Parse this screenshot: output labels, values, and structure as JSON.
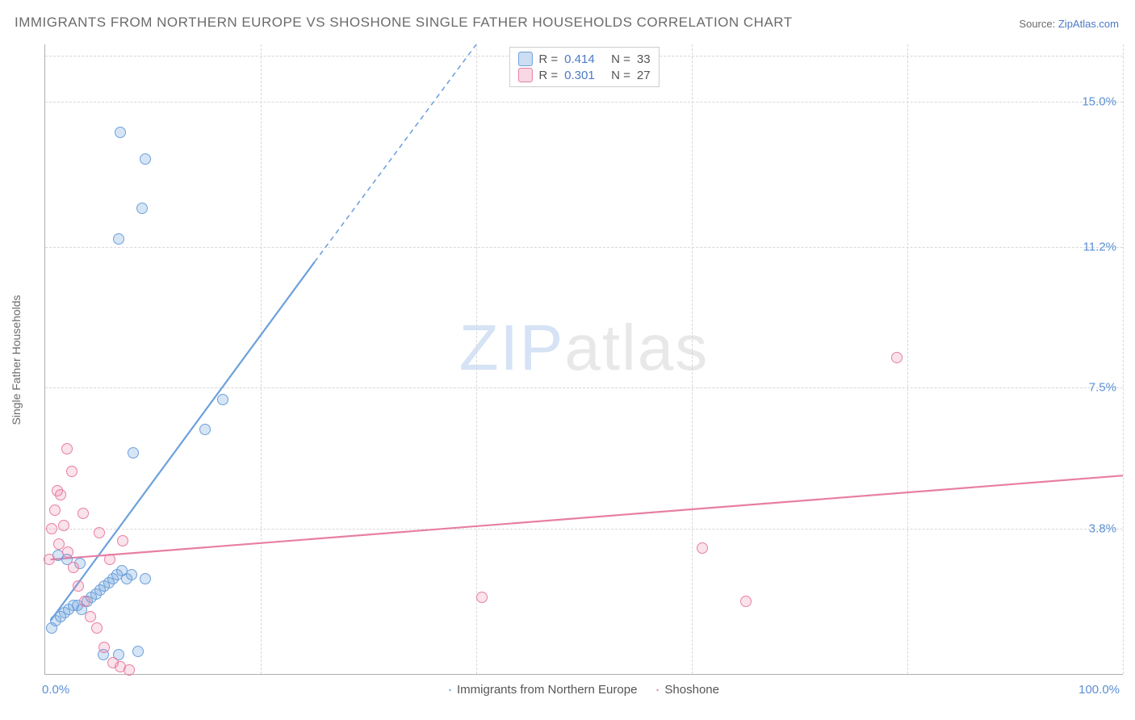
{
  "title": "IMMIGRANTS FROM NORTHERN EUROPE VS SHOSHONE SINGLE FATHER HOUSEHOLDS CORRELATION CHART",
  "source_label": "Source:",
  "source_link": "ZipAtlas.com",
  "watermark_a": "ZIP",
  "watermark_b": "atlas",
  "chart": {
    "type": "scatter",
    "y_axis_label": "Single Father Households",
    "xlim": [
      0,
      100
    ],
    "ylim": [
      0,
      16.5
    ],
    "x_tick_labels": [
      {
        "x": 0,
        "label": "0.0%"
      },
      {
        "x": 100,
        "label": "100.0%"
      }
    ],
    "y_tick_labels": [
      {
        "y": 3.8,
        "label": "3.8%"
      },
      {
        "y": 7.5,
        "label": "7.5%"
      },
      {
        "y": 11.2,
        "label": "11.2%"
      },
      {
        "y": 15.0,
        "label": "15.0%"
      }
    ],
    "grid_h": [
      3.8,
      7.5,
      11.2,
      15.0,
      16.2
    ],
    "grid_v": [
      20,
      40,
      60,
      80,
      100
    ],
    "background_color": "#ffffff",
    "grid_color": "#d8d8d8",
    "series": [
      {
        "key": "blue",
        "name": "Immigrants from Northern Europe",
        "color_fill": "rgba(108,160,220,0.28)",
        "color_stroke": "#6ca0dc",
        "r_value": "0.414",
        "n_value": "33",
        "marker_radius": 7,
        "trend": {
          "x1": 0.5,
          "y1": 1.4,
          "x2_solid": 25,
          "y2_solid": 10.8,
          "x2_dash": 40,
          "y2_dash": 16.5,
          "stroke_width": 2.2
        },
        "points": [
          {
            "x": 0.6,
            "y": 1.2
          },
          {
            "x": 1.0,
            "y": 1.4
          },
          {
            "x": 1.4,
            "y": 1.5
          },
          {
            "x": 1.8,
            "y": 1.6
          },
          {
            "x": 2.2,
            "y": 1.7
          },
          {
            "x": 2.6,
            "y": 1.8
          },
          {
            "x": 3.0,
            "y": 1.8
          },
          {
            "x": 3.4,
            "y": 1.7
          },
          {
            "x": 3.9,
            "y": 1.9
          },
          {
            "x": 4.3,
            "y": 2.0
          },
          {
            "x": 4.7,
            "y": 2.1
          },
          {
            "x": 5.1,
            "y": 2.2
          },
          {
            "x": 5.5,
            "y": 2.3
          },
          {
            "x": 5.9,
            "y": 2.4
          },
          {
            "x": 6.3,
            "y": 2.5
          },
          {
            "x": 6.7,
            "y": 2.6
          },
          {
            "x": 7.1,
            "y": 2.7
          },
          {
            "x": 7.6,
            "y": 2.5
          },
          {
            "x": 8.0,
            "y": 2.6
          },
          {
            "x": 8.6,
            "y": 0.6
          },
          {
            "x": 6.8,
            "y": 0.5
          },
          {
            "x": 5.4,
            "y": 0.5
          },
          {
            "x": 9.3,
            "y": 2.5
          },
          {
            "x": 8.2,
            "y": 5.8
          },
          {
            "x": 14.8,
            "y": 6.4
          },
          {
            "x": 16.5,
            "y": 7.2
          },
          {
            "x": 6.8,
            "y": 11.4
          },
          {
            "x": 9.0,
            "y": 12.2
          },
          {
            "x": 7.0,
            "y": 14.2
          },
          {
            "x": 9.3,
            "y": 13.5
          },
          {
            "x": 3.2,
            "y": 2.9
          },
          {
            "x": 2.0,
            "y": 3.0
          },
          {
            "x": 1.2,
            "y": 3.1
          }
        ]
      },
      {
        "key": "pink",
        "name": "Shoshone",
        "color_fill": "rgba(232,126,164,0.22)",
        "color_stroke": "#e87ea4",
        "r_value": "0.301",
        "n_value": "27",
        "marker_radius": 7,
        "trend": {
          "x1": 0.5,
          "y1": 3.0,
          "x2_solid": 100,
          "y2_solid": 5.2,
          "stroke_width": 2.2
        },
        "points": [
          {
            "x": 0.4,
            "y": 3.0
          },
          {
            "x": 0.6,
            "y": 3.8
          },
          {
            "x": 0.9,
            "y": 4.3
          },
          {
            "x": 1.1,
            "y": 4.8
          },
          {
            "x": 1.4,
            "y": 4.7
          },
          {
            "x": 1.7,
            "y": 3.9
          },
          {
            "x": 2.1,
            "y": 3.2
          },
          {
            "x": 2.6,
            "y": 2.8
          },
          {
            "x": 3.1,
            "y": 2.3
          },
          {
            "x": 3.7,
            "y": 1.9
          },
          {
            "x": 4.2,
            "y": 1.5
          },
          {
            "x": 4.8,
            "y": 1.2
          },
          {
            "x": 5.5,
            "y": 0.7
          },
          {
            "x": 6.3,
            "y": 0.3
          },
          {
            "x": 7.0,
            "y": 0.2
          },
          {
            "x": 7.8,
            "y": 0.1
          },
          {
            "x": 2.5,
            "y": 5.3
          },
          {
            "x": 2.0,
            "y": 5.9
          },
          {
            "x": 1.3,
            "y": 3.4
          },
          {
            "x": 3.5,
            "y": 4.2
          },
          {
            "x": 5.0,
            "y": 3.7
          },
          {
            "x": 6.0,
            "y": 3.0
          },
          {
            "x": 7.2,
            "y": 3.5
          },
          {
            "x": 40.5,
            "y": 2.0
          },
          {
            "x": 61.0,
            "y": 3.3
          },
          {
            "x": 65.0,
            "y": 1.9
          },
          {
            "x": 79.0,
            "y": 8.3
          }
        ]
      }
    ],
    "legend_top": {
      "r_label": "R =",
      "n_label": "N ="
    },
    "title_fontsize": 17,
    "label_fontsize": 14,
    "tick_fontsize": 15
  }
}
